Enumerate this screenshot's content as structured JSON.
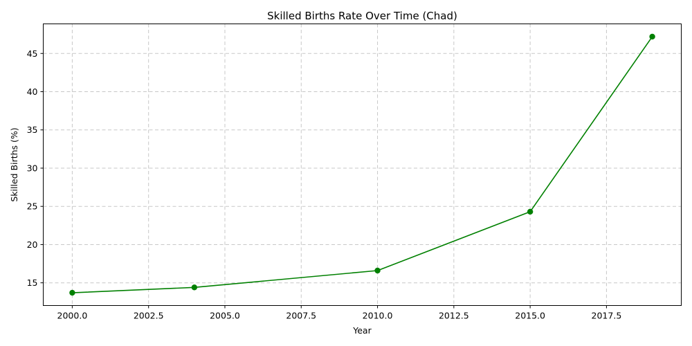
{
  "chart_data": {
    "type": "line",
    "title": "Skilled Births Rate Over Time (Chad)",
    "xlabel": "Year",
    "ylabel": "Skilled Births (%)",
    "xlim": [
      1999.05,
      2019.95
    ],
    "ylim": [
      12.03,
      48.87
    ],
    "x_ticks": [
      2000.0,
      2002.5,
      2005.0,
      2007.5,
      2010.0,
      2012.5,
      2015.0,
      2017.5
    ],
    "x_tick_labels": [
      "2000.0",
      "2002.5",
      "2005.0",
      "2007.5",
      "2010.0",
      "2012.5",
      "2015.0",
      "2017.5"
    ],
    "y_ticks": [
      15,
      20,
      25,
      30,
      35,
      40,
      45
    ],
    "y_tick_labels": [
      "15",
      "20",
      "25",
      "30",
      "35",
      "40",
      "45"
    ],
    "grid": true,
    "marker": "circle",
    "series": [
      {
        "color": "#008000",
        "x": [
          2000,
          2004,
          2010,
          2015,
          2019
        ],
        "y": [
          13.7,
          14.4,
          16.6,
          24.3,
          47.2
        ]
      }
    ]
  }
}
